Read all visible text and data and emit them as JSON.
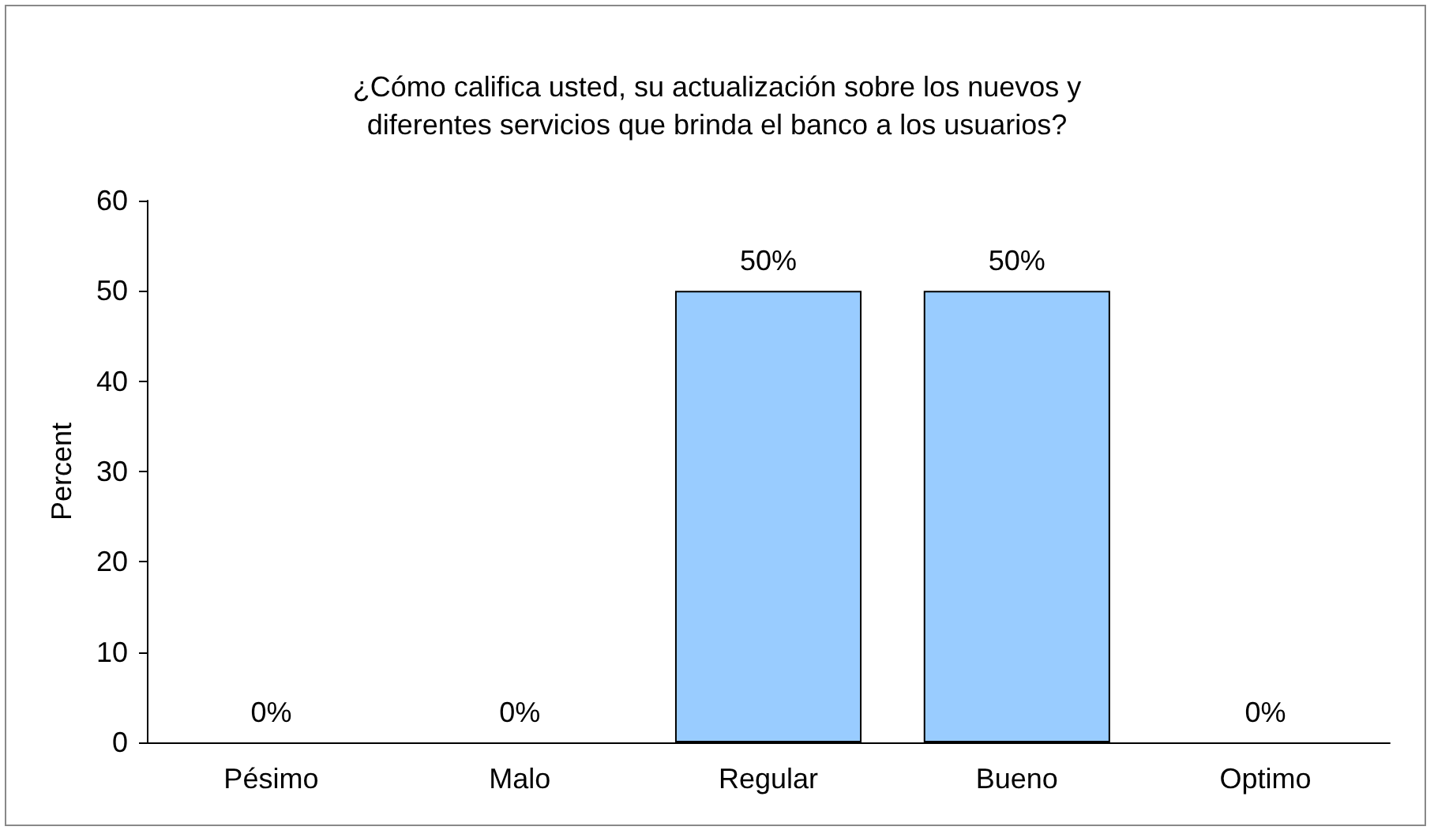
{
  "chart_data": {
    "type": "bar",
    "title": "¿Cómo califica usted, su actualización sobre los nuevos y\ndiferentes servicios que brinda el banco a los usuarios?",
    "ylabel": "Percent",
    "categories": [
      "Pésimo",
      "Malo",
      "Regular",
      "Bueno",
      "Optimo"
    ],
    "values": [
      0,
      0,
      50,
      50,
      0
    ],
    "value_labels": [
      "0%",
      "0%",
      "50%",
      "50%",
      "0%"
    ],
    "color": "#99ccff",
    "ylim": [
      0,
      60
    ],
    "yticks": [
      0,
      10,
      20,
      30,
      40,
      50,
      60
    ],
    "grid": false
  }
}
